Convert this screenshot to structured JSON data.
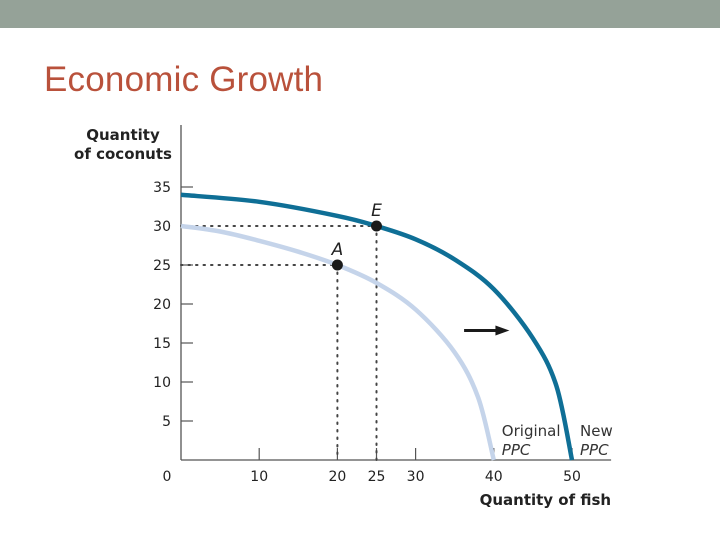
{
  "slide": {
    "title": "Economic Growth",
    "colors": {
      "top_bar": "#95a298",
      "title": "#b9513b"
    }
  },
  "chart_data": {
    "type": "line",
    "ylabel": [
      "Quantity",
      "of coconuts"
    ],
    "xlabel": "Quantity of fish",
    "xlim": [
      0,
      55
    ],
    "ylim": [
      0,
      35
    ],
    "x_ticks": [
      10,
      20,
      25,
      30,
      40,
      50
    ],
    "y_ticks": [
      5,
      10,
      15,
      20,
      25,
      30,
      35
    ],
    "origin_label": "0",
    "series": [
      {
        "key": "original",
        "label_line1": "Original",
        "label_line2": "PPC",
        "color": "#c5d4ea",
        "x": [
          0,
          5,
          10,
          15,
          20,
          25,
          30,
          35,
          38,
          40
        ],
        "y": [
          30,
          29.3,
          28.1,
          26.7,
          25,
          22.7,
          19.3,
          13.8,
          8,
          0
        ]
      },
      {
        "key": "new",
        "label_line1": "New",
        "label_line2": "PPC",
        "color": "#0f6f96",
        "x": [
          0,
          10,
          20,
          25,
          30,
          35,
          40,
          45,
          48,
          50
        ],
        "y": [
          34,
          33.1,
          31.3,
          30,
          28.3,
          25.7,
          21.9,
          15.6,
          9.5,
          0
        ]
      }
    ],
    "points": [
      {
        "label": "A",
        "x": 20,
        "y": 25
      },
      {
        "label": "E",
        "x": 25,
        "y": 30
      }
    ],
    "annotation": "arrow pointing right (outward shift)",
    "grid": false,
    "legend": "none"
  }
}
